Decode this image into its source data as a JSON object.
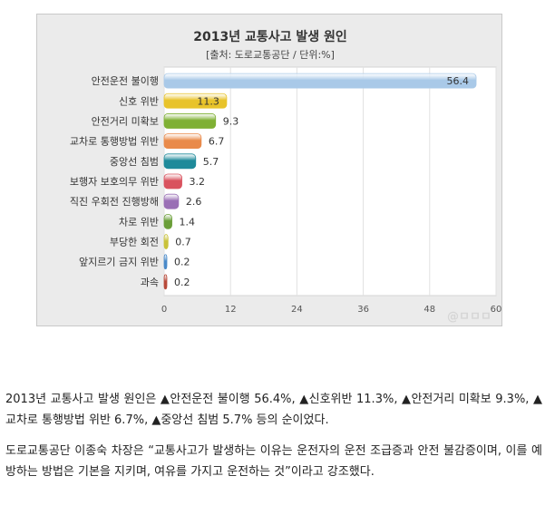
{
  "chart_data": {
    "type": "bar",
    "orientation": "horizontal",
    "title": "2013년 교통사고 발생 원인",
    "subtitle": "[출처: 도로교통공단 / 단위:%]",
    "categories": [
      "안전운전 불이행",
      "신호 위반",
      "안전거리 미확보",
      "교차로 통행방법 위반",
      "중앙선 침범",
      "보행자 보호의무 위반",
      "직진 우회전 진행방해",
      "차로 위반",
      "부당한 회전",
      "앞지르기 금지 위반",
      "과속"
    ],
    "values": [
      56.4,
      11.3,
      9.3,
      6.7,
      5.7,
      3.2,
      2.6,
      1.4,
      0.7,
      0.2,
      0.2
    ],
    "value_labels": [
      "56.4",
      "11.3",
      "9.3",
      "6.7",
      "5.7",
      "3.2",
      "2.6",
      "1.4",
      "0.7",
      "0.2",
      "0.2"
    ],
    "colors": [
      "#a9c9e8",
      "#e8c32a",
      "#7fb034",
      "#e98a4a",
      "#1e8a9a",
      "#d9525e",
      "#9a6fb5",
      "#6a9e38",
      "#c9c23a",
      "#4a8ac9",
      "#b84a3a"
    ],
    "xlim": [
      0,
      60
    ],
    "xticks": [
      "0",
      "12",
      "24",
      "36",
      "48",
      "60"
    ],
    "grid": true,
    "legend": "none"
  },
  "watermark": "@ㅁㅁㅁ",
  "article": {
    "paragraph1": "2013년 교통사고 발생 원인은 ▲안전운전 불이행 56.4%, ▲신호위반 11.3%, ▲안전거리 미확보 9.3%, ▲교차로 통행방법 위반 6.7%, ▲중앙선 침범 5.7% 등의 순이었다.",
    "paragraph2": "도로교통공단 이종숙 차장은 “교통사고가 발생하는 이유는 운전자의 운전 조급증과 안전 불감증이며, 이를 예방하는 방법은 기본을 지키며, 여유를 가지고 운전하는 것”이라고 강조했다."
  }
}
